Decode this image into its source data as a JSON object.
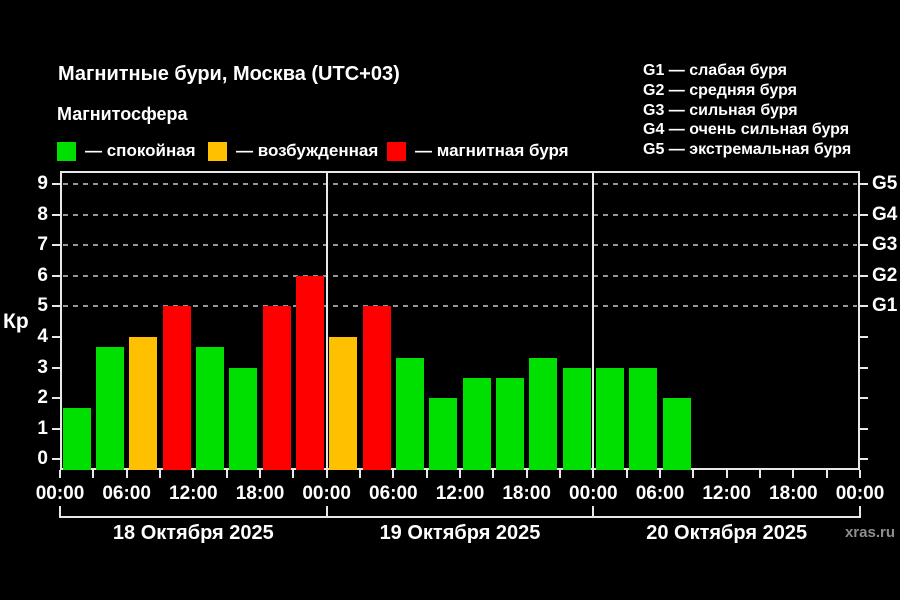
{
  "header": {
    "title": "Магнитные бури, Москва (UTC+03)",
    "subtitle": "Магнитосфера"
  },
  "legend": {
    "items": [
      {
        "label": "— спокойная",
        "level": "quiet",
        "color": "#00e000"
      },
      {
        "label": "— возбужденная",
        "level": "excited",
        "color": "#ffc000"
      },
      {
        "label": "— магнитная буря",
        "level": "storm",
        "color": "#ff0000"
      }
    ]
  },
  "g_legend": [
    "G1 — слабая буря",
    "G2 — средняя буря",
    "G3 — сильная буря",
    "G4 — очень сильная буря",
    "G5 — экстремальная буря"
  ],
  "watermark": "xras.ru",
  "chart_data": {
    "type": "bar",
    "title": "Магнитные бури, Москва (UTC+03)",
    "ylabel": "Кр",
    "ylim": [
      0,
      9
    ],
    "y_tick_labels": [
      "0",
      "1",
      "2",
      "3",
      "4",
      "5",
      "6",
      "7",
      "8",
      "9"
    ],
    "gridlines_at": [
      5,
      6,
      7,
      8,
      9
    ],
    "grid": "dashed, only at G-storm levels",
    "right_axis": [
      {
        "label": "G1",
        "kp": 5
      },
      {
        "label": "G2",
        "kp": 6
      },
      {
        "label": "G3",
        "kp": 7
      },
      {
        "label": "G4",
        "kp": 8
      },
      {
        "label": "G5",
        "kp": 9
      }
    ],
    "hours_per_bar": 3,
    "x_total_hours": 72,
    "x_tick_labels": [
      "00:00",
      "06:00",
      "12:00",
      "18:00",
      "00:00",
      "06:00",
      "12:00",
      "18:00",
      "00:00",
      "06:00",
      "12:00",
      "18:00",
      "00:00"
    ],
    "days": [
      {
        "date": "18 Октября 2025",
        "bars": [
          {
            "kp": 1.67,
            "level": "quiet"
          },
          {
            "kp": 3.67,
            "level": "quiet"
          },
          {
            "kp": 4.0,
            "level": "excited"
          },
          {
            "kp": 5.0,
            "level": "storm"
          },
          {
            "kp": 3.67,
            "level": "quiet"
          },
          {
            "kp": 3.0,
            "level": "quiet"
          },
          {
            "kp": 5.0,
            "level": "storm"
          },
          {
            "kp": 6.0,
            "level": "storm"
          }
        ]
      },
      {
        "date": "19 Октября 2025",
        "bars": [
          {
            "kp": 4.0,
            "level": "excited"
          },
          {
            "kp": 5.0,
            "level": "storm"
          },
          {
            "kp": 3.33,
            "level": "quiet"
          },
          {
            "kp": 2.0,
            "level": "quiet"
          },
          {
            "kp": 2.67,
            "level": "quiet"
          },
          {
            "kp": 2.67,
            "level": "quiet"
          },
          {
            "kp": 3.33,
            "level": "quiet"
          },
          {
            "kp": 3.0,
            "level": "quiet"
          }
        ]
      },
      {
        "date": "20 Октября 2025",
        "bars": [
          {
            "kp": 3.0,
            "level": "quiet"
          },
          {
            "kp": 3.0,
            "level": "quiet"
          },
          {
            "kp": 2.0,
            "level": "quiet"
          }
        ]
      }
    ],
    "colors": {
      "quiet": "#00e000",
      "excited": "#ffc000",
      "storm": "#ff0000",
      "frame": "#e8e8e8",
      "grid": "#969696",
      "text": "#ffffff"
    }
  }
}
